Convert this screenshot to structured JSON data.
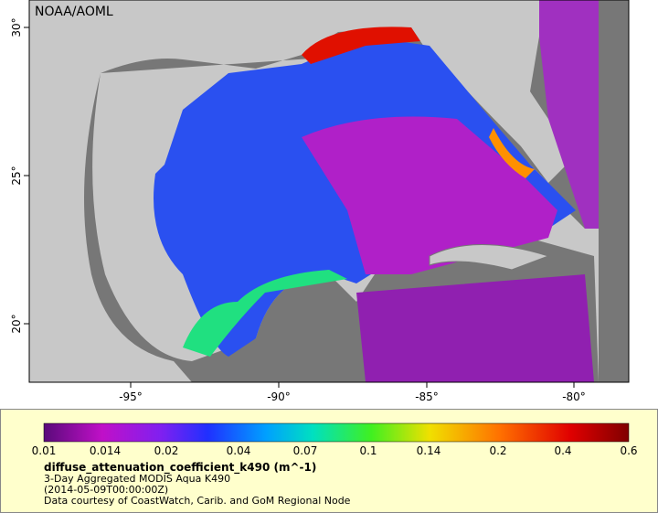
{
  "map": {
    "credit": "NOAA/AOML",
    "lon_ticks": [
      "-95°",
      "-90°",
      "-85°",
      "-80°"
    ],
    "lat_ticks": [
      "30°",
      "25°",
      "20°"
    ]
  },
  "colorbar": {
    "ticks": [
      "0.01",
      "0.014",
      "0.02",
      "0.04",
      "0.07",
      "0.1",
      "0.14",
      "0.2",
      "0.4",
      "0.6"
    ]
  },
  "legend": {
    "variable": "diffuse_attenuation_coefficient_k490 (m^-1)",
    "lines": [
      "3-Day Aggregated MODIS Aqua K490",
      "(2014-05-09T00:00:00Z)",
      "Data courtesy of CoastWatch, Carib. and GoM Regional Node"
    ]
  }
}
